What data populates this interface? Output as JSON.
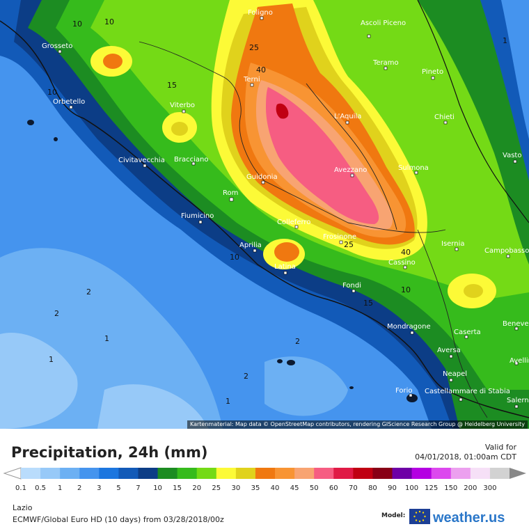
{
  "map": {
    "attribution": "Kartenmaterial: Map data © OpenStreetMap contributors, rendering GIScience Research Group @ Heidelberg University",
    "cities": [
      {
        "name": "Foligno"
      },
      {
        "name": "Ascoli Piceno"
      },
      {
        "name": "Grosseto"
      },
      {
        "name": "Teramo"
      },
      {
        "name": "Pineto"
      },
      {
        "name": "Terni"
      },
      {
        "name": "Orbetello"
      },
      {
        "name": "Viterbo"
      },
      {
        "name": "L'Aquila"
      },
      {
        "name": "Chieti"
      },
      {
        "name": "Vasto"
      },
      {
        "name": "Civitavecchia"
      },
      {
        "name": "Bracciano"
      },
      {
        "name": "Guidonia"
      },
      {
        "name": "Avezzano"
      },
      {
        "name": "Sulmona"
      },
      {
        "name": "Rom"
      },
      {
        "name": "Fiumicino"
      },
      {
        "name": "Colleferro"
      },
      {
        "name": "Frosinone"
      },
      {
        "name": "Isernia"
      },
      {
        "name": "Campobasso"
      },
      {
        "name": "Aprilia"
      },
      {
        "name": "Cassino"
      },
      {
        "name": "Latina"
      },
      {
        "name": "Fondi"
      },
      {
        "name": "Mondragone"
      },
      {
        "name": "Caserta"
      },
      {
        "name": "Benevento"
      },
      {
        "name": "Aversa"
      },
      {
        "name": "Avellino"
      },
      {
        "name": "Neapel"
      },
      {
        "name": "Castellammare di Stabia"
      },
      {
        "name": "Forio"
      },
      {
        "name": "Salerno"
      }
    ],
    "isolines": [
      "10",
      "10",
      "25",
      "40",
      "15",
      "10",
      "25",
      "40",
      "10",
      "15",
      "10",
      "2",
      "2",
      "1",
      "1",
      "2",
      "2",
      "1",
      "1"
    ]
  },
  "legend": {
    "title": "Precipitation, 24h (mm)",
    "valid_label": "Valid for",
    "valid_time": "04/01/2018, 01:00am CDT",
    "unit": "mm",
    "classes": [
      {
        "label": "0.1",
        "color": "#b9dcfc"
      },
      {
        "label": "0.5",
        "color": "#97c9f8"
      },
      {
        "label": "1",
        "color": "#6cb0f3"
      },
      {
        "label": "2",
        "color": "#4594ee"
      },
      {
        "label": "3",
        "color": "#1c76df"
      },
      {
        "label": "5",
        "color": "#125ab8"
      },
      {
        "label": "7",
        "color": "#0c3d86"
      },
      {
        "label": "10",
        "color": "#1c8c22"
      },
      {
        "label": "15",
        "color": "#36bb1c"
      },
      {
        "label": "20",
        "color": "#74da16"
      },
      {
        "label": "25",
        "color": "#fcfa37"
      },
      {
        "label": "30",
        "color": "#e0d21c"
      },
      {
        "label": "35",
        "color": "#f07810"
      },
      {
        "label": "40",
        "color": "#f89433"
      },
      {
        "label": "45",
        "color": "#f8a472"
      },
      {
        "label": "50",
        "color": "#f65d82"
      },
      {
        "label": "60",
        "color": "#e01a45"
      },
      {
        "label": "70",
        "color": "#c00012"
      },
      {
        "label": "80",
        "color": "#880016"
      },
      {
        "label": "90",
        "color": "#6e00a6"
      },
      {
        "label": "100",
        "color": "#b400e2"
      },
      {
        "label": "125",
        "color": "#dc48ee"
      },
      {
        "label": "150",
        "color": "#eca0ef"
      },
      {
        "label": "200",
        "color": "#f6e0f7"
      },
      {
        "label": "300",
        "color": "#d2d2d2"
      }
    ]
  },
  "footer": {
    "region": "Lazio",
    "model": "ECMWF/Global Euro HD (10 days) from 03/28/2018/00z",
    "model_label": "Model:",
    "brand": "weather.us"
  }
}
